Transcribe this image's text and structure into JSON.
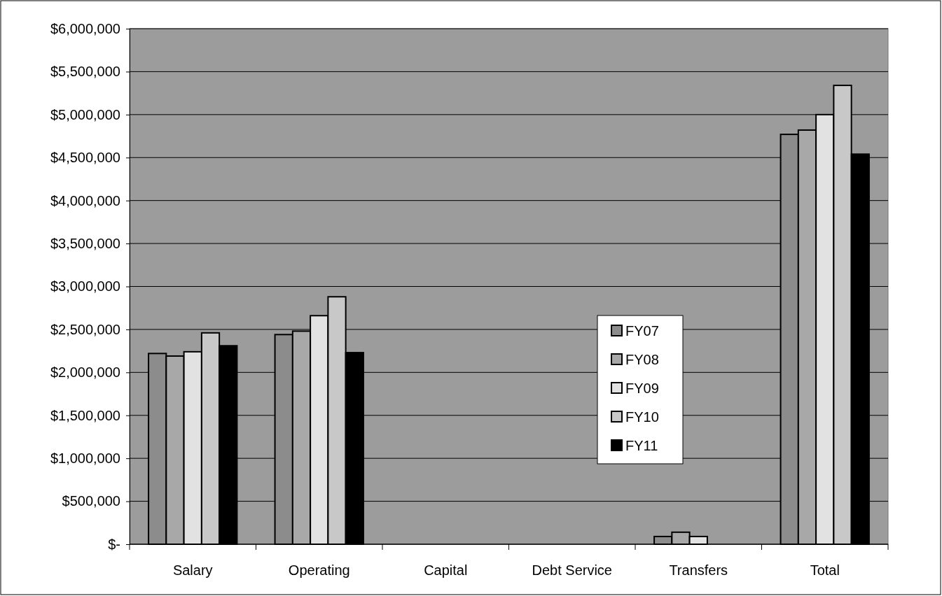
{
  "chart_data": {
    "type": "bar",
    "categories": [
      "Salary",
      "Operating",
      "Capital",
      "Debt Service",
      "Transfers",
      "Total"
    ],
    "series": [
      {
        "name": "FY07",
        "color": "#8c8c8c",
        "values": [
          2220000,
          2440000,
          0,
          0,
          90000,
          4770000
        ]
      },
      {
        "name": "FY08",
        "color": "#a8a8a8",
        "values": [
          2190000,
          2480000,
          0,
          0,
          140000,
          4820000
        ]
      },
      {
        "name": "FY09",
        "color": "#e2e2e2",
        "values": [
          2240000,
          2660000,
          0,
          0,
          90000,
          5000000
        ]
      },
      {
        "name": "FY10",
        "color": "#c8c8c8",
        "values": [
          2460000,
          2880000,
          0,
          0,
          0,
          5340000
        ]
      },
      {
        "name": "FY11",
        "color": "#000000",
        "values": [
          2310000,
          2230000,
          0,
          0,
          0,
          4540000
        ]
      }
    ],
    "ylim": [
      0,
      6000000
    ],
    "yticks": [
      {
        "value": 0,
        "label": "$-"
      },
      {
        "value": 500000,
        "label": "$500,000"
      },
      {
        "value": 1000000,
        "label": "$1,000,000"
      },
      {
        "value": 1500000,
        "label": "$1,500,000"
      },
      {
        "value": 2000000,
        "label": "$2,000,000"
      },
      {
        "value": 2500000,
        "label": "$2,500,000"
      },
      {
        "value": 3000000,
        "label": "$3,000,000"
      },
      {
        "value": 3500000,
        "label": "$3,500,000"
      },
      {
        "value": 4000000,
        "label": "$4,000,000"
      },
      {
        "value": 4500000,
        "label": "$4,500,000"
      },
      {
        "value": 5000000,
        "label": "$5,000,000"
      },
      {
        "value": 5500000,
        "label": "$5,500,000"
      },
      {
        "value": 6000000,
        "label": "$6,000,000"
      }
    ],
    "grid": "y",
    "legend": "right"
  }
}
